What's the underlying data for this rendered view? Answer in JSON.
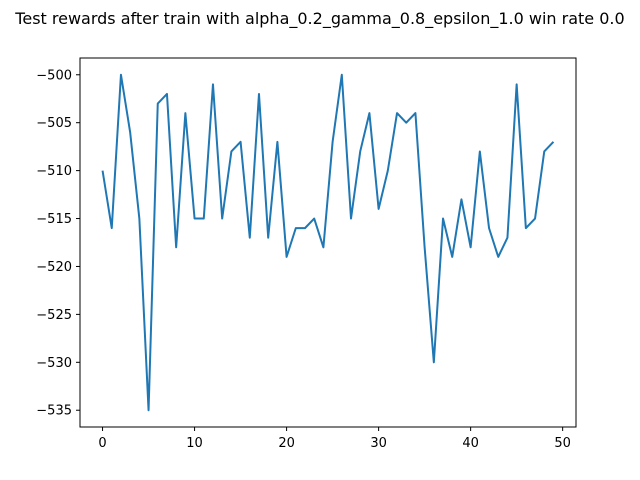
{
  "chart_data": {
    "type": "line",
    "title": "Test rewards after train with alpha_0.2_gamma_0.8_epsilon_1.0 win rate 0.0",
    "xlabel": "",
    "ylabel": "",
    "xlim": [
      -2.45,
      51.45
    ],
    "ylim": [
      -536.75,
      -498.25
    ],
    "xticks": [
      0,
      10,
      20,
      30,
      40,
      50
    ],
    "xtick_labels": [
      "0",
      "10",
      "20",
      "30",
      "40",
      "50"
    ],
    "yticks": [
      -535,
      -530,
      -525,
      -520,
      -515,
      -510,
      -505,
      -500
    ],
    "ytick_labels": [
      "−535",
      "−530",
      "−525",
      "−520",
      "−515",
      "−510",
      "−505",
      "−500"
    ],
    "grid": false,
    "legend": "none",
    "series": [
      {
        "color": "#1f77b4",
        "x": [
          0,
          1,
          2,
          3,
          4,
          5,
          6,
          7,
          8,
          9,
          10,
          11,
          12,
          13,
          14,
          15,
          16,
          17,
          18,
          19,
          20,
          21,
          22,
          23,
          24,
          25,
          26,
          27,
          28,
          29,
          30,
          31,
          32,
          33,
          34,
          35,
          36,
          37,
          38,
          39,
          40,
          41,
          42,
          43,
          44,
          45,
          46,
          47,
          48,
          49
        ],
        "values": [
          -510,
          -516,
          -500,
          -506,
          -515,
          -535,
          -503,
          -502,
          -518,
          -504,
          -515,
          -515,
          -501,
          -515,
          -508,
          -507,
          -517,
          -502,
          -517,
          -507,
          -519,
          -516,
          -516,
          -515,
          -518,
          -507,
          -500,
          -515,
          -508,
          -504,
          -514,
          -510,
          -504,
          -505,
          -504,
          -518,
          -530,
          -515,
          -519,
          -513,
          -518,
          -508,
          -516,
          -519,
          -517,
          -501,
          -516,
          -515,
          -508,
          -507
        ]
      }
    ]
  }
}
